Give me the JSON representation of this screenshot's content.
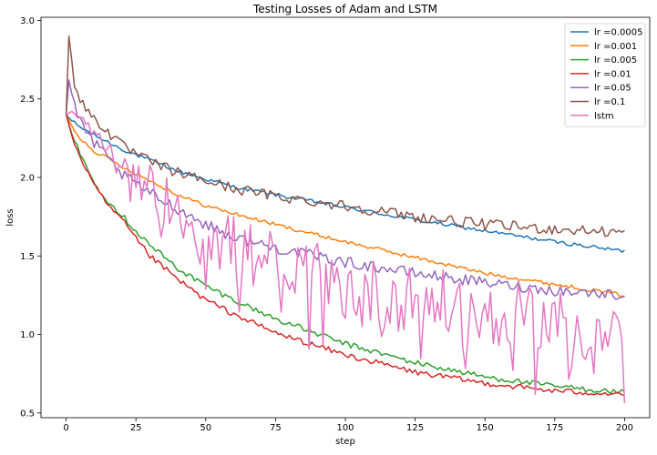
{
  "chart_data": {
    "type": "line",
    "title": "Testing Losses of Adam and LSTM",
    "xlabel": "step",
    "ylabel": "loss",
    "xlim": [
      -9,
      209
    ],
    "ylim": [
      0.47,
      3.02
    ],
    "x_ticks": [
      0,
      25,
      50,
      75,
      100,
      125,
      150,
      175,
      200
    ],
    "y_ticks": [
      0.5,
      1.0,
      1.5,
      2.0,
      2.5,
      3.0
    ],
    "y_tick_labels": [
      "0.5",
      "1.0",
      "1.5",
      "2.0",
      "2.5",
      "3.0"
    ],
    "legend_position": "top-right",
    "grid": false,
    "x_range": [
      0,
      200
    ],
    "series": [
      {
        "name": "lr =0.0005",
        "color": "#1f77b4",
        "points": [
          [
            0,
            2.4
          ],
          [
            2,
            2.36
          ],
          [
            5,
            2.32
          ],
          [
            10,
            2.27
          ],
          [
            20,
            2.18
          ],
          [
            30,
            2.11
          ],
          [
            40,
            2.04
          ],
          [
            50,
            1.99
          ],
          [
            60,
            1.94
          ],
          [
            75,
            1.89
          ],
          [
            100,
            1.81
          ],
          [
            125,
            1.73
          ],
          [
            150,
            1.66
          ],
          [
            175,
            1.59
          ],
          [
            200,
            1.53
          ]
        ]
      },
      {
        "name": "lr =0.001",
        "color": "#ff7f0e",
        "points": [
          [
            0,
            2.4
          ],
          [
            2,
            2.33
          ],
          [
            5,
            2.25
          ],
          [
            10,
            2.17
          ],
          [
            20,
            2.07
          ],
          [
            30,
            1.98
          ],
          [
            40,
            1.89
          ],
          [
            50,
            1.82
          ],
          [
            60,
            1.77
          ],
          [
            75,
            1.7
          ],
          [
            100,
            1.59
          ],
          [
            125,
            1.49
          ],
          [
            150,
            1.39
          ],
          [
            175,
            1.32
          ],
          [
            200,
            1.25
          ]
        ]
      },
      {
        "name": "lr =0.005",
        "color": "#2ca02c",
        "points": [
          [
            0,
            2.4
          ],
          [
            2,
            2.28
          ],
          [
            5,
            2.15
          ],
          [
            10,
            1.97
          ],
          [
            15,
            1.85
          ],
          [
            20,
            1.76
          ],
          [
            25,
            1.66
          ],
          [
            30,
            1.57
          ],
          [
            40,
            1.42
          ],
          [
            50,
            1.31
          ],
          [
            60,
            1.22
          ],
          [
            75,
            1.1
          ],
          [
            100,
            0.94
          ],
          [
            125,
            0.82
          ],
          [
            150,
            0.73
          ],
          [
            175,
            0.67
          ],
          [
            200,
            0.63
          ]
        ]
      },
      {
        "name": "lr =0.01",
        "color": "#d62728",
        "points": [
          [
            0,
            2.4
          ],
          [
            2,
            2.27
          ],
          [
            5,
            2.13
          ],
          [
            10,
            1.95
          ],
          [
            15,
            1.82
          ],
          [
            20,
            1.73
          ],
          [
            25,
            1.61
          ],
          [
            30,
            1.5
          ],
          [
            40,
            1.35
          ],
          [
            50,
            1.22
          ],
          [
            60,
            1.13
          ],
          [
            75,
            1.01
          ],
          [
            100,
            0.87
          ],
          [
            125,
            0.76
          ],
          [
            150,
            0.69
          ],
          [
            175,
            0.64
          ],
          [
            200,
            0.62
          ]
        ]
      },
      {
        "name": "lr =0.05",
        "color": "#9467bd",
        "points": [
          [
            0,
            2.4
          ],
          [
            1,
            2.62
          ],
          [
            3,
            2.45
          ],
          [
            5,
            2.35
          ],
          [
            10,
            2.22
          ],
          [
            20,
            2.02
          ],
          [
            30,
            1.9
          ],
          [
            40,
            1.8
          ],
          [
            50,
            1.7
          ],
          [
            60,
            1.62
          ],
          [
            75,
            1.55
          ],
          [
            100,
            1.46
          ],
          [
            125,
            1.39
          ],
          [
            150,
            1.33
          ],
          [
            175,
            1.28
          ],
          [
            200,
            1.25
          ]
        ]
      },
      {
        "name": "lr =0.1",
        "color": "#8c564b",
        "points": [
          [
            0,
            2.4
          ],
          [
            1,
            2.9
          ],
          [
            3,
            2.6
          ],
          [
            5,
            2.48
          ],
          [
            10,
            2.38
          ],
          [
            20,
            2.2
          ],
          [
            30,
            2.1
          ],
          [
            40,
            2.03
          ],
          [
            50,
            1.98
          ],
          [
            60,
            1.93
          ],
          [
            75,
            1.88
          ],
          [
            100,
            1.82
          ],
          [
            125,
            1.75
          ],
          [
            150,
            1.7
          ],
          [
            175,
            1.67
          ],
          [
            200,
            1.65
          ]
        ]
      },
      {
        "name": "lstm",
        "color": "#e377c2",
        "points": [
          [
            0,
            2.4
          ],
          [
            2,
            2.42
          ],
          [
            5,
            2.38
          ],
          [
            10,
            2.3
          ],
          [
            20,
            2.12
          ],
          [
            30,
            1.95
          ],
          [
            40,
            1.75
          ],
          [
            50,
            1.65
          ],
          [
            60,
            1.55
          ],
          [
            75,
            1.45
          ],
          [
            100,
            1.3
          ],
          [
            125,
            1.22
          ],
          [
            150,
            1.15
          ],
          [
            175,
            1.08
          ],
          [
            200,
            0.98
          ]
        ]
      }
    ]
  }
}
